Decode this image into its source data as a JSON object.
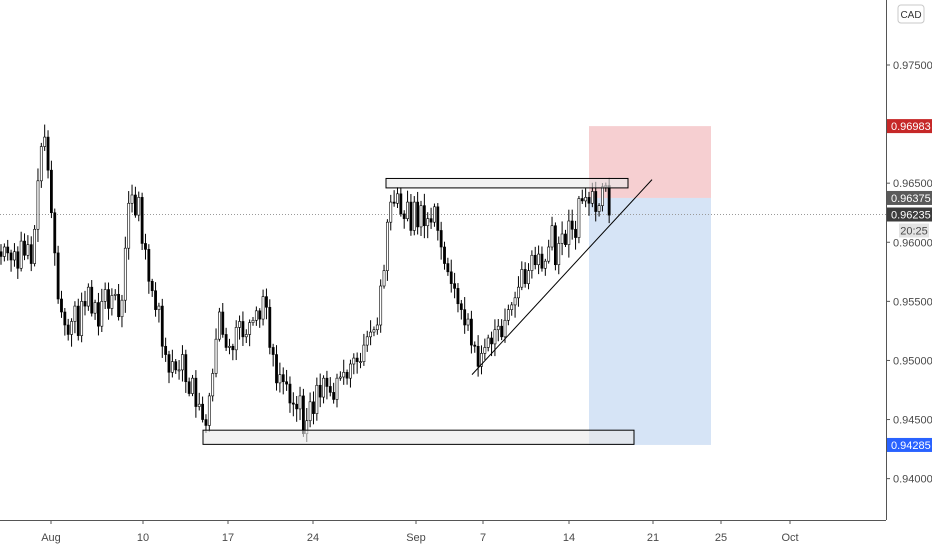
{
  "currency_label": "CAD",
  "countdown": "20:25",
  "chart_data": {
    "type": "candlestick",
    "x_tick_labels": [
      "Aug",
      "10",
      "17",
      "24",
      "Sep",
      "7",
      "14",
      "21",
      "25",
      "Oct"
    ],
    "y_tick_labels": [
      "0.97500",
      "0.96500",
      "0.96000",
      "0.95500",
      "0.95000",
      "0.94500",
      "0.94000"
    ],
    "y_ticks": [
      0.975,
      0.965,
      0.96,
      0.955,
      0.95,
      0.945,
      0.94
    ],
    "ylim": [
      0.9365,
      0.9805
    ],
    "price_badges": [
      {
        "label": "0.96983",
        "value": 0.96983,
        "color": "#c62828"
      },
      {
        "label": "0.96375",
        "value": 0.96375,
        "color": "#5a5a5a"
      },
      {
        "label": "0.96235",
        "value": 0.96235,
        "color": "#3c3c3c"
      },
      {
        "label": "0.94285",
        "value": 0.94285,
        "color": "#2962ff"
      }
    ],
    "current_price": 0.96235,
    "position": {
      "entry": 0.96375,
      "stop_loss": 0.96983,
      "take_profit": 0.94285,
      "stop_color": "#f4c7c9",
      "target_color": "#cfdff5"
    },
    "zones": [
      {
        "top": 0.9654,
        "bottom": 0.9646
      },
      {
        "top": 0.9441,
        "bottom": 0.9429
      }
    ],
    "trendline": {
      "start": 0.9488,
      "end": 0.9653
    },
    "candles_close": [
      0.9588,
      0.9596,
      0.9591,
      0.9585,
      0.9592,
      0.9578,
      0.9601,
      0.9589,
      0.9598,
      0.9582,
      0.9611,
      0.9652,
      0.9681,
      0.9689,
      0.9661,
      0.9625,
      0.9591,
      0.9552,
      0.9541,
      0.953,
      0.9522,
      0.9533,
      0.9546,
      0.9521,
      0.955,
      0.9546,
      0.9562,
      0.954,
      0.9549,
      0.9529,
      0.955,
      0.956,
      0.9544,
      0.9555,
      0.9556,
      0.9537,
      0.9551,
      0.9595,
      0.9633,
      0.964,
      0.9623,
      0.9638,
      0.9599,
      0.9594,
      0.9567,
      0.9559,
      0.9543,
      0.9546,
      0.9512,
      0.9505,
      0.949,
      0.9499,
      0.9492,
      0.9492,
      0.9505,
      0.9482,
      0.9472,
      0.9485,
      0.9461,
      0.9463,
      0.945,
      0.9445,
      0.947,
      0.9489,
      0.9518,
      0.9541,
      0.9522,
      0.9511,
      0.9512,
      0.9509,
      0.9528,
      0.9533,
      0.952,
      0.9522,
      0.9532,
      0.9534,
      0.9542,
      0.9535,
      0.9554,
      0.9545,
      0.9511,
      0.9505,
      0.9481,
      0.9488,
      0.9482,
      0.948,
      0.9464,
      0.9463,
      0.9459,
      0.947,
      0.9438,
      0.9449,
      0.9465,
      0.9455,
      0.9479,
      0.9469,
      0.9485,
      0.9478,
      0.9473,
      0.9467,
      0.9485,
      0.9486,
      0.949,
      0.9485,
      0.9497,
      0.9502,
      0.9499,
      0.9499,
      0.9513,
      0.952,
      0.9524,
      0.9526,
      0.953,
      0.9563,
      0.9576,
      0.9617,
      0.9634,
      0.9633,
      0.9641,
      0.9624,
      0.962,
      0.9634,
      0.961,
      0.9634,
      0.9613,
      0.9631,
      0.9614,
      0.962,
      0.9617,
      0.963,
      0.961,
      0.9596,
      0.9582,
      0.9575,
      0.9565,
      0.9561,
      0.9548,
      0.9543,
      0.953,
      0.9535,
      0.9513,
      0.9512,
      0.9495,
      0.9506,
      0.9511,
      0.9519,
      0.9514,
      0.9526,
      0.9529,
      0.952,
      0.9534,
      0.9543,
      0.9547,
      0.9553,
      0.9562,
      0.9577,
      0.9565,
      0.9576,
      0.9589,
      0.9581,
      0.959,
      0.9578,
      0.9584,
      0.9596,
      0.9614,
      0.9581,
      0.9599,
      0.9607,
      0.9598,
      0.9618,
      0.9611,
      0.9604,
      0.9637,
      0.9635,
      0.9638,
      0.9633,
      0.9643,
      0.9626,
      0.9631,
      0.9647,
      0.9648,
      0.9623
    ]
  }
}
